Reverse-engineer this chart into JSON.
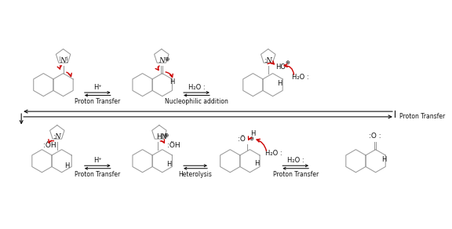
{
  "bg_color": "#ffffff",
  "line_color": "#999999",
  "red_color": "#cc0000",
  "black_color": "#111111",
  "proton_transfer": "Proton Transfer",
  "nucleophilic_addition": "Nucleophilic addition",
  "heterolysis": "Heterolysis",
  "h_plus": "H⁺",
  "h2o_colon": "H₂O :",
  "figsize": [
    5.76,
    2.92
  ],
  "dpi": 100,
  "r_hex": 14,
  "lw": 0.75
}
